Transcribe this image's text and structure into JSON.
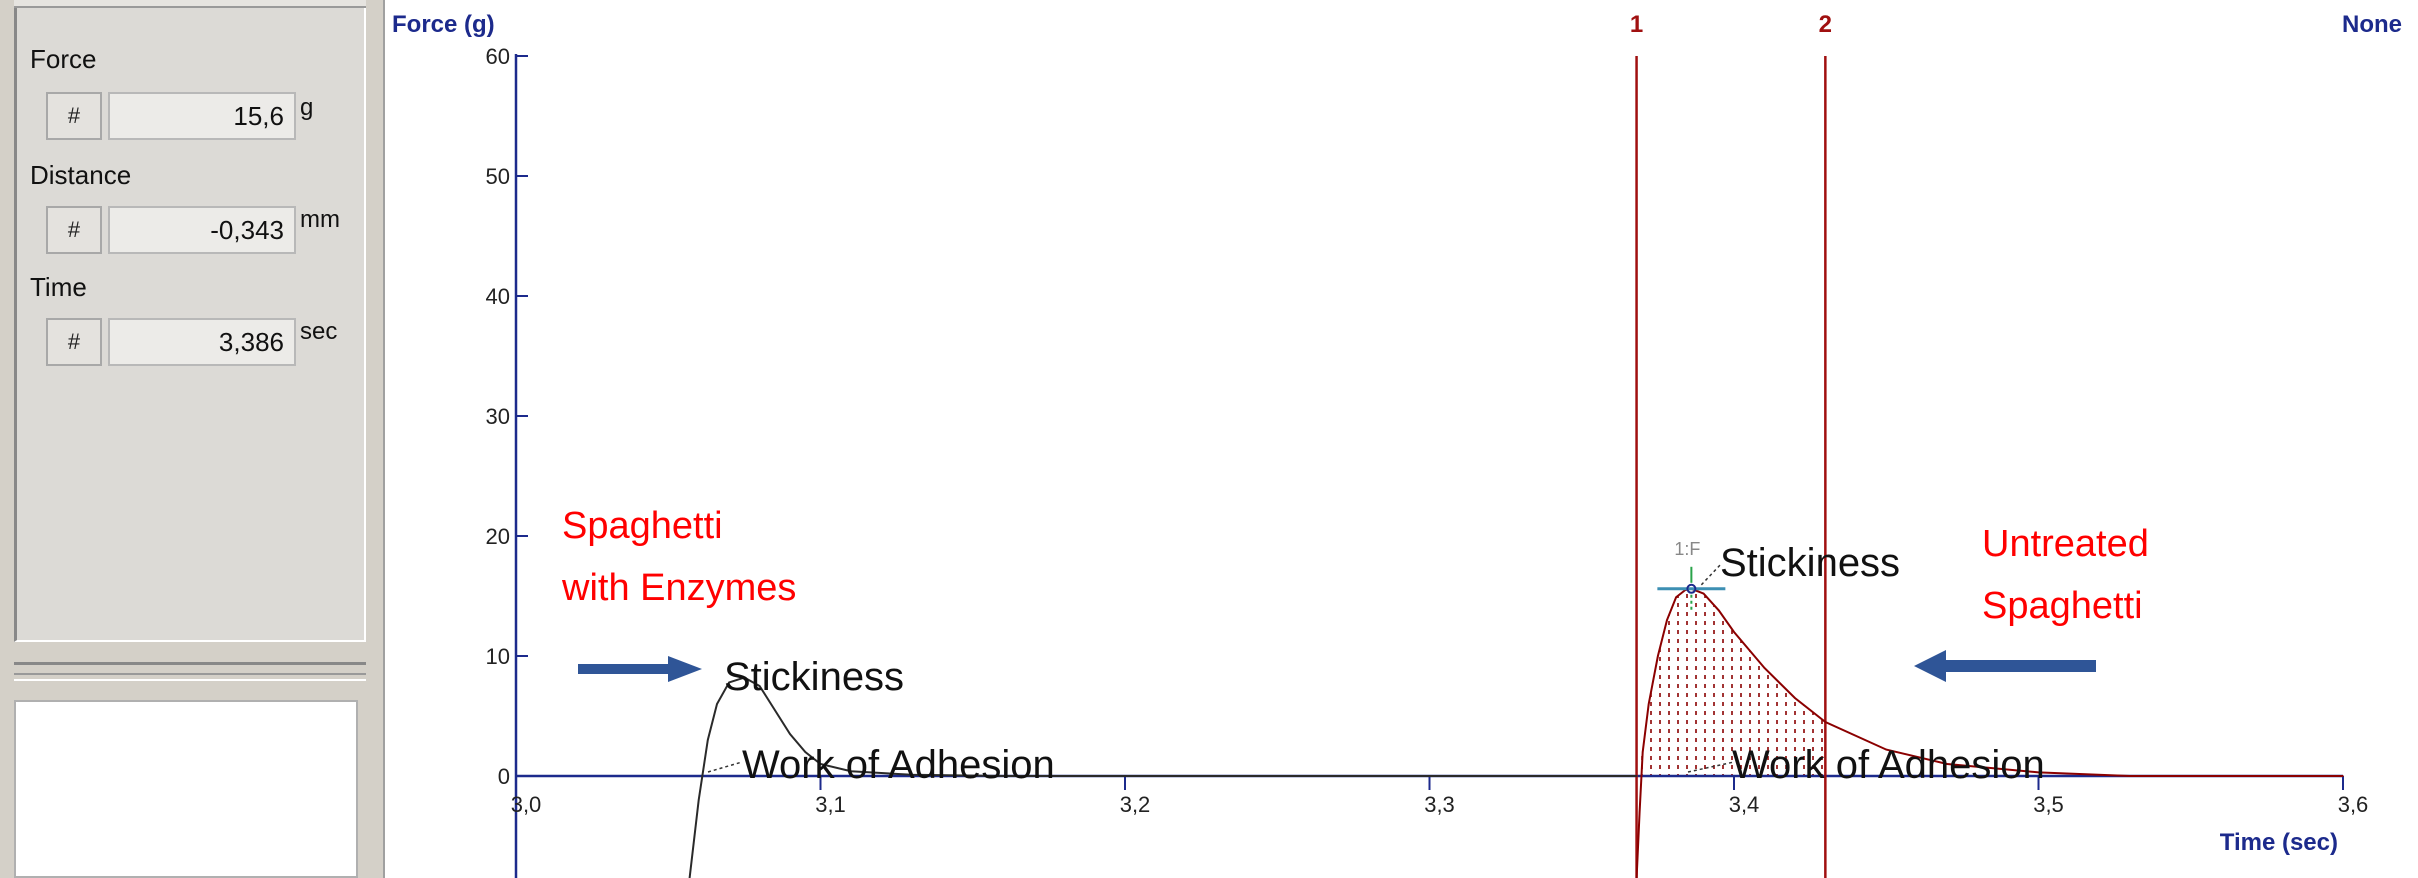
{
  "readouts": {
    "force": {
      "label": "Force",
      "button": "#",
      "value": "15,6",
      "unit": "g"
    },
    "distance": {
      "label": "Distance",
      "button": "#",
      "value": "-0,343",
      "unit": "mm"
    },
    "time": {
      "label": "Time",
      "button": "#",
      "value": "3,386",
      "unit": "sec"
    }
  },
  "colors": {
    "axis": "#1c2a8c",
    "curve": "#8b0000",
    "cursor": "#a01010",
    "annotation": "#ff0000",
    "arrow": "#2f5597",
    "hatch": "#8b0000"
  },
  "chart_data": {
    "type": "line",
    "ylabel": "Force (g)",
    "xlabel": "Time (sec)",
    "corner_label": "None",
    "xlim": [
      3.0,
      3.6
    ],
    "ylim": [
      0,
      60
    ],
    "x_ticks": [
      3.0,
      3.1,
      3.2,
      3.3,
      3.4,
      3.5,
      3.6
    ],
    "x_tick_labels": [
      "3,0",
      "3,1",
      "3,2",
      "3,3",
      "3,4",
      "3,5",
      "3,6"
    ],
    "y_ticks": [
      0,
      10,
      20,
      30,
      40,
      50,
      60
    ],
    "y_tick_labels": [
      "0",
      "10",
      "20",
      "30",
      "40",
      "50",
      "60"
    ],
    "cursors": [
      {
        "label": "1",
        "x": 3.368
      },
      {
        "label": "2",
        "x": 3.43
      }
    ],
    "series": [
      {
        "x": [
          3.057,
          3.06,
          3.063,
          3.066,
          3.07,
          3.075,
          3.08,
          3.085,
          3.09,
          3.095,
          3.1,
          3.11,
          3.13,
          3.16,
          3.2,
          3.25,
          3.3,
          3.35,
          3.368
        ],
        "y": [
          -12,
          -2,
          3,
          6,
          7.8,
          8.2,
          7.5,
          5.5,
          3.5,
          2,
          1,
          0.4,
          0.1,
          0,
          0,
          0,
          0,
          0,
          0
        ]
      },
      {
        "x": [
          3.368,
          3.369,
          3.37,
          3.372,
          3.375,
          3.378,
          3.381,
          3.384,
          3.386,
          3.39,
          3.395,
          3.4,
          3.41,
          3.42,
          3.43,
          3.45,
          3.47,
          3.5,
          3.53,
          3.56,
          3.6
        ],
        "y": [
          -12,
          -3,
          2,
          6,
          10,
          13,
          14.9,
          15.5,
          15.6,
          15.2,
          13.8,
          12,
          9,
          6.5,
          4.5,
          2.2,
          1,
          0.3,
          0,
          0,
          0
        ]
      }
    ],
    "peak_marker": {
      "label": "1:F",
      "x": 3.386,
      "y": 15.6
    },
    "annotations": [
      {
        "text": "Spaghetti",
        "style": "red"
      },
      {
        "text": "with Enzymes",
        "style": "red"
      },
      {
        "text": "Untreated",
        "style": "red"
      },
      {
        "text": "Spaghetti",
        "style": "red"
      },
      {
        "text": "Stickiness",
        "style": "black"
      },
      {
        "text": "Work of Adhesion",
        "style": "black"
      },
      {
        "text": "Stickiness",
        "style": "black"
      },
      {
        "text": "Work of Adhesion",
        "style": "black"
      }
    ]
  }
}
